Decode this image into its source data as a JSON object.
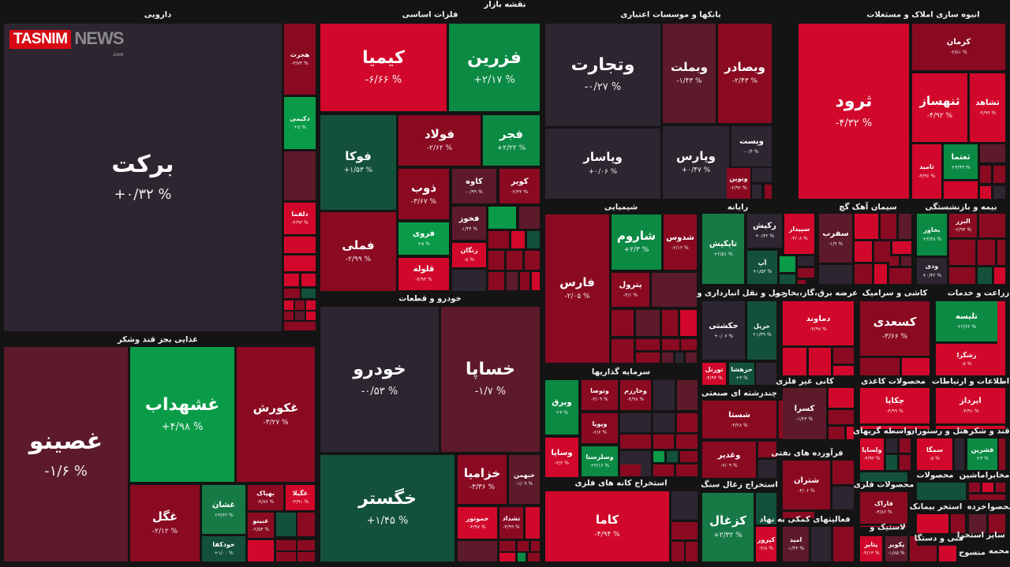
{
  "map_title": "نقشه بازار",
  "logo": {
    "part1": "TASNIM",
    "part2": "NEWS",
    "part3": ".com"
  },
  "palette": {
    "neutral": "#2d2530",
    "maroon": "#5c1a2b",
    "darkred": "#8a0a22",
    "red": "#d1082b",
    "green": "#0b8a44",
    "brightgreen": "#0a9b48",
    "darkgreen": "#13513a",
    "midgreen": "#177a46"
  },
  "sectors": [
    {
      "title": "دارویی",
      "tiles": [
        {
          "symbol": "برکت",
          "change": "+۰/۳۲ %",
          "color": "neutral"
        },
        {
          "symbol": "هجرت",
          "change": "-۳/۷۴ %",
          "color": "darkred"
        },
        {
          "symbol": "دکیمی",
          "change": "+۵ %",
          "color": "brightgreen"
        },
        {
          "symbol": "دلقما",
          "change": "-۴/۹۳ %",
          "color": "red"
        }
      ]
    },
    {
      "title": "فلزات اساسی",
      "tiles": [
        {
          "symbol": "کیمیا",
          "change": "-۶/۶۶ %",
          "color": "red"
        },
        {
          "symbol": "فزرین",
          "change": "+۲/۱۷ %",
          "color": "green"
        },
        {
          "symbol": "فوکا",
          "change": "+۱/۵۳ %",
          "color": "darkgreen"
        },
        {
          "symbol": "فولاد",
          "change": "-۲/۶۲ %",
          "color": "darkred"
        },
        {
          "symbol": "فجر",
          "change": "+۲/۲۲ %",
          "color": "green"
        },
        {
          "symbol": "فملی",
          "change": "-۲/۹۹ %",
          "color": "darkred"
        },
        {
          "symbol": "ذوب",
          "change": "-۳/۶۷ %",
          "color": "darkred"
        },
        {
          "symbol": "کاوه",
          "change": "-۰/۹۹ %",
          "color": "maroon"
        },
        {
          "symbol": "کویر",
          "change": "-۲/۳۲ %",
          "color": "darkred"
        },
        {
          "symbol": "فروی",
          "change": "+۵ %",
          "color": "brightgreen"
        },
        {
          "symbol": "قلوله",
          "change": "-۴/۹۴ %",
          "color": "red"
        },
        {
          "symbol": "فخوز",
          "change": "-۱/۴۴ %",
          "color": "maroon"
        },
        {
          "symbol": "زنگان",
          "change": "-۵ %",
          "color": "red"
        }
      ]
    },
    {
      "title": "بانکها و موسسات اعتباری",
      "tiles": [
        {
          "symbol": "وتجارت",
          "change": "-۰/۲۷ %",
          "color": "neutral"
        },
        {
          "symbol": "وپاسار",
          "change": "+۰/۰۶ %",
          "color": "neutral"
        },
        {
          "symbol": "وبملت",
          "change": "-۱/۴۳ %",
          "color": "maroon"
        },
        {
          "symbol": "وبصادر",
          "change": "-۲/۴۳ %",
          "color": "darkred"
        },
        {
          "symbol": "وپارس",
          "change": "+۰/۴۷ %",
          "color": "neutral"
        },
        {
          "symbol": "وپست",
          "change": "-۰/۴ %",
          "color": "neutral"
        },
        {
          "symbol": "ونوین",
          "change": "-۲/۹۲ %",
          "color": "darkred"
        }
      ]
    },
    {
      "title": "انبوه سازی املاک و مستغلات",
      "tiles": [
        {
          "symbol": "ثرود",
          "change": "-۴/۳۲ %",
          "color": "red"
        },
        {
          "symbol": "کرمان",
          "change": "-۲/۸۱ %",
          "color": "darkred"
        },
        {
          "symbol": "ثنهساز",
          "change": "-۴/۹۲ %",
          "color": "red"
        },
        {
          "symbol": "ثشاهد",
          "change": "-۴/۹۹ %",
          "color": "red"
        },
        {
          "symbol": "ثامید",
          "change": "-۴/۹۶ %",
          "color": "red"
        },
        {
          "symbol": "ثعتما",
          "change": "+۴/۹۹ %",
          "color": "green"
        }
      ]
    },
    {
      "title": "غذایی بجز قند وشکر",
      "tiles": [
        {
          "symbol": "غصینو",
          "change": "-۱/۶ %",
          "color": "maroon"
        },
        {
          "symbol": "غشهداب",
          "change": "+۴/۹۸ %",
          "color": "brightgreen"
        },
        {
          "symbol": "غکورش",
          "change": "-۳/۲۷ %",
          "color": "darkred"
        },
        {
          "symbol": "غگل",
          "change": "-۲/۱۲ %",
          "color": "darkred"
        },
        {
          "symbol": "غشان",
          "change": "+۳/۶۲ %",
          "color": "midgreen"
        },
        {
          "symbol": "خودکفا",
          "change": "+۱/۰۰ %",
          "color": "darkgreen"
        },
        {
          "symbol": "بهپاک",
          "change": "-۳/۸۷ %",
          "color": "darkred"
        },
        {
          "symbol": "غگیلا",
          "change": "-۴/۹۱ %",
          "color": "red"
        },
        {
          "symbol": "غبینو",
          "change": "-۲/۵۴ %",
          "color": "darkred"
        }
      ]
    },
    {
      "title": "خودرو و قطعات",
      "tiles": [
        {
          "symbol": "خودرو",
          "change": "-۰/۵۳ %",
          "color": "neutral"
        },
        {
          "symbol": "خساپا",
          "change": "-۱/۷ %",
          "color": "maroon"
        },
        {
          "symbol": "خگستر",
          "change": "+۱/۴۵ %",
          "color": "darkgreen"
        },
        {
          "symbol": "خزامیا",
          "change": "-۳/۳۶ %",
          "color": "darkred"
        },
        {
          "symbol": "خبهمن",
          "change": "-۱/۰۹ %",
          "color": "maroon"
        },
        {
          "symbol": "خموتور",
          "change": "-۴/۹۷ %",
          "color": "red"
        },
        {
          "symbol": "تشداد",
          "change": "-۴/۹۹ %",
          "color": "darkred"
        }
      ]
    },
    {
      "title": "شیمیایی",
      "tiles": [
        {
          "symbol": "فارس",
          "change": "-۲/۰۵ %",
          "color": "darkred"
        },
        {
          "symbol": "شاروم",
          "change": "+۲/۳ %",
          "color": "green"
        },
        {
          "symbol": "شدوس",
          "change": "-۲/۱۲ %",
          "color": "darkred"
        },
        {
          "symbol": "پترول",
          "change": "-۳/۱ %",
          "color": "darkred"
        }
      ]
    },
    {
      "title": "رایانه",
      "tiles": [
        {
          "symbol": "تاپکیش",
          "change": "+۲/۵۱ %",
          "color": "midgreen"
        },
        {
          "symbol": "رکیش",
          "change": "+۰/۳۲ %",
          "color": "neutral"
        },
        {
          "symbol": "آپ",
          "change": "+۱/۵۴ %",
          "color": "darkgreen"
        },
        {
          "symbol": "سپیدار",
          "change": "-۴/۰۸ %",
          "color": "red"
        }
      ]
    },
    {
      "title": "سیمان آهک گچ",
      "tiles": [
        {
          "symbol": "سفرب",
          "change": "-۱/۹ %",
          "color": "maroon"
        }
      ]
    },
    {
      "title": "بیمه و بازنشستگی",
      "tiles": [
        {
          "symbol": "بخاور",
          "change": "+۳/۳۸ %",
          "color": "green"
        },
        {
          "symbol": "البرز",
          "change": "-۲/۹۴ %",
          "color": "darkred"
        },
        {
          "symbol": "ودی",
          "change": "+۰/۴۲ %",
          "color": "neutral"
        }
      ]
    },
    {
      "title": "حمل و نقل انبارداری و",
      "tiles": [
        {
          "symbol": "حکشتی",
          "change": "+۰/۰۷ %",
          "color": "neutral"
        },
        {
          "symbol": "حریل",
          "change": "+۱/۴۹ %",
          "color": "darkgreen"
        },
        {
          "symbol": "تورنل",
          "change": "-۴/۹۳ %",
          "color": "red"
        },
        {
          "symbol": "حرهشا",
          "change": "+۳ %",
          "color": "darkgreen"
        }
      ]
    },
    {
      "title": "عرضه برق،گاز،بخار و",
      "tiles": [
        {
          "symbol": "دماوند",
          "change": "-۴/۹۷ %",
          "color": "red"
        }
      ]
    },
    {
      "title": "کاشی و سرامیک",
      "tiles": [
        {
          "symbol": "کسعدی",
          "change": "-۳/۶۶ %",
          "color": "darkred"
        }
      ]
    },
    {
      "title": "زراعت و خدمات",
      "tiles": [
        {
          "symbol": "تلیسه",
          "change": "+۲/۶۲ %",
          "color": "green"
        },
        {
          "symbol": "زشگزا",
          "change": "-۵ %",
          "color": "red"
        }
      ]
    },
    {
      "title": "سرمایه گذاریها",
      "tiles": [
        {
          "symbol": "وبرق",
          "change": "+۳ %",
          "color": "green"
        },
        {
          "symbol": "وساپا",
          "change": "-۴/۲ %",
          "color": "red"
        },
        {
          "symbol": "وتوصا",
          "change": "-۳/۰۹ %",
          "color": "darkred"
        },
        {
          "symbol": "وخارزم",
          "change": "-۴/۹۸ %",
          "color": "darkred"
        },
        {
          "symbol": "وپویا",
          "change": "-۲/۶ %",
          "color": "darkred"
        },
        {
          "symbol": "وسلرستا",
          "change": "+۳/۱۶ %",
          "color": "green"
        }
      ]
    },
    {
      "title": "کانی غیر فلزی",
      "tiles": [
        {
          "symbol": "کسرا",
          "change": "-۱/۴۳ %",
          "color": "maroon"
        }
      ]
    },
    {
      "title": "محصولات کاغذی",
      "tiles": [
        {
          "symbol": "چکاپا",
          "change": "-۴/۹۹ %",
          "color": "red"
        }
      ]
    },
    {
      "title": "اطلاعات و ارتباطات",
      "tiles": [
        {
          "symbol": "ایرداز",
          "change": "-۴/۹۱ %",
          "color": "red"
        }
      ]
    },
    {
      "title": "چندرشته ای صنعتی",
      "tiles": [
        {
          "symbol": "شستا",
          "change": "-۳/۲۸ %",
          "color": "darkred"
        },
        {
          "symbol": "وغدیر",
          "change": "-۲/۰۹ %",
          "color": "darkred"
        }
      ]
    },
    {
      "title": "واسطه گریهای",
      "tiles": [
        {
          "symbol": "ولساپا",
          "change": "-۴/۹۲ %",
          "color": "red"
        }
      ]
    },
    {
      "title": "هتل و رستوران",
      "tiles": [
        {
          "symbol": "سمگا",
          "change": "-۵ %",
          "color": "red"
        }
      ]
    },
    {
      "title": "قند و شکر",
      "tiles": [
        {
          "symbol": "قشرین",
          "change": "+۳ %",
          "color": "green"
        }
      ]
    },
    {
      "title": "فرآورده های نفتی",
      "tiles": [
        {
          "symbol": "شتران",
          "change": "-۴/۰۶ %",
          "color": "darkred"
        }
      ]
    },
    {
      "title": "استخراج کانه های فلزی",
      "tiles": [
        {
          "symbol": "کاما",
          "change": "-۴/۹۴ %",
          "color": "red"
        }
      ]
    },
    {
      "title": "استخراج زغال سنگ",
      "tiles": [
        {
          "symbol": "کزغال",
          "change": "+۲/۳۲ %",
          "color": "midgreen"
        },
        {
          "symbol": "کپرور",
          "change": "-۴/۸ %",
          "color": "red"
        }
      ]
    },
    {
      "title": "محصولات فلزی",
      "tiles": [
        {
          "symbol": "فاراک",
          "change": "-۳/۸۶ %",
          "color": "darkred"
        }
      ]
    },
    {
      "title": "فعالیتهای کمکی به نهاد",
      "tiles": [
        {
          "symbol": "امید",
          "change": "-۱/۴۳ %",
          "color": "maroon"
        }
      ]
    },
    {
      "title": "لاستیک و",
      "tiles": [
        {
          "symbol": "پتایر",
          "change": "-۴/۱۳ %",
          "color": "red"
        },
        {
          "symbol": "پکویر",
          "change": "-۱/۸۵ %",
          "color": "maroon"
        }
      ]
    },
    {
      "title": "محصولات",
      "tiles": []
    },
    {
      "title": "ماشین",
      "tiles": []
    },
    {
      "title": "مخابرا",
      "tiles": []
    },
    {
      "title": "استخر بیمانک",
      "tiles": []
    },
    {
      "title": "خرده",
      "tiles": []
    },
    {
      "title": "محصوا",
      "tiles": []
    },
    {
      "title": "فنی و دستگا",
      "tiles": []
    },
    {
      "title": "استخرا",
      "tiles": []
    },
    {
      "title": "سایر",
      "tiles": []
    },
    {
      "title": "منسوج",
      "tiles": []
    },
    {
      "title": "محمه",
      "tiles": []
    }
  ]
}
